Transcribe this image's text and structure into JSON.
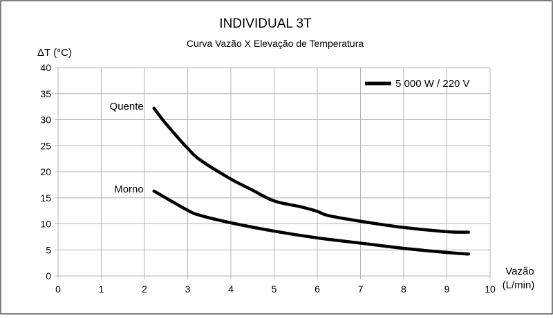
{
  "chart_data": {
    "type": "line",
    "title": "INDIVIDUAL 3T",
    "subtitle": "Curva Vazão X Elevação de Temperatura",
    "ylabel": "ΔT (°C)",
    "xlabel": "Vazão",
    "xlabel_unit": "(L/min)",
    "xlim": [
      0,
      10
    ],
    "ylim": [
      0,
      40
    ],
    "xticks": [
      0,
      1,
      2,
      3,
      4,
      5,
      6,
      7,
      8,
      9,
      10
    ],
    "yticks": [
      0,
      5,
      10,
      15,
      20,
      25,
      30,
      35,
      40
    ],
    "grid": true,
    "legend_position": "top-right",
    "legend": [
      "5 000 W / 220 V"
    ],
    "line_color": "#000000",
    "grid_color": "#b3b3b3",
    "series": [
      {
        "label": "Quente",
        "x": [
          2.22,
          2.5,
          3,
          3.3,
          4,
          4.47,
          5,
          5.6,
          6,
          6.25,
          7,
          8,
          9,
          9.5
        ],
        "y": [
          32.2,
          29.2,
          24.5,
          22.2,
          18.6,
          16.6,
          14.4,
          13.3,
          12.4,
          11.6,
          10.5,
          9.3,
          8.5,
          8.4
        ]
      },
      {
        "label": "Morno",
        "x": [
          2.22,
          3,
          3.3,
          4,
          5,
          6,
          7,
          8,
          9,
          9.5
        ],
        "y": [
          16.3,
          12.6,
          11.6,
          10.2,
          8.6,
          7.3,
          6.3,
          5.3,
          4.5,
          4.2
        ]
      }
    ]
  }
}
